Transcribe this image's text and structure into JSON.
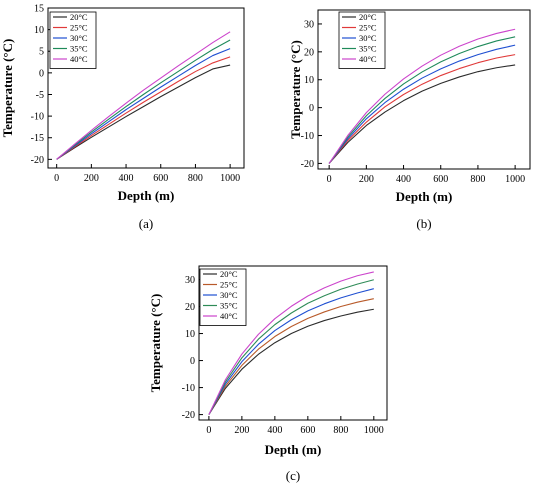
{
  "colors": {
    "20°C": "#2b2b2b",
    "25°C": "#e03a3a",
    "30°C": "#1f4fd1",
    "35°C": "#1f8a5a",
    "40°C": "#cc44cc",
    "c_25°C": "#b85a2a",
    "c_35°C": "#2e8b57"
  },
  "chart_data": [
    {
      "id": "a",
      "type": "line",
      "caption": "(a)",
      "xlabel": "Depth (m)",
      "ylabel": "Temperature (°C)",
      "xlim": [
        -50,
        1080
      ],
      "ylim": [
        -22,
        15
      ],
      "xticks": [
        0,
        200,
        400,
        600,
        800,
        1000
      ],
      "yticks": [
        -20,
        -15,
        -10,
        -5,
        0,
        5,
        10,
        15
      ],
      "legend_position": "top-left",
      "x": [
        0,
        100,
        200,
        300,
        400,
        500,
        600,
        700,
        800,
        900,
        1000
      ],
      "series": [
        {
          "name": "20°C",
          "color": "#2b2b2b",
          "values": [
            -20,
            -17.4,
            -14.9,
            -12.5,
            -10.1,
            -7.8,
            -5.5,
            -3.3,
            -1.1,
            0.9,
            1.8
          ]
        },
        {
          "name": "25°C",
          "color": "#e03a3a",
          "values": [
            -20,
            -17.2,
            -14.5,
            -11.9,
            -9.3,
            -6.8,
            -4.4,
            -2.0,
            0.3,
            2.3,
            3.7
          ]
        },
        {
          "name": "30°C",
          "color": "#1f4fd1",
          "values": [
            -20,
            -17.0,
            -14.1,
            -11.3,
            -8.5,
            -5.9,
            -3.3,
            -0.8,
            1.7,
            4.0,
            5.6
          ]
        },
        {
          "name": "35°C",
          "color": "#1f8a5a",
          "values": [
            -20,
            -16.8,
            -13.7,
            -10.7,
            -7.8,
            -5.0,
            -2.3,
            0.3,
            2.9,
            5.4,
            7.6
          ]
        },
        {
          "name": "40°C",
          "color": "#cc44cc",
          "values": [
            -20,
            -16.6,
            -13.3,
            -10.1,
            -7.0,
            -4.0,
            -1.2,
            1.6,
            4.3,
            7.0,
            9.5
          ]
        }
      ]
    },
    {
      "id": "b",
      "type": "line",
      "caption": "(b)",
      "xlabel": "Depth (m)",
      "ylabel": "Temperature (°C)",
      "xlim": [
        -60,
        1080
      ],
      "ylim": [
        -22,
        35
      ],
      "xticks": [
        0,
        200,
        400,
        600,
        800,
        1000
      ],
      "yticks": [
        -20,
        -10,
        0,
        10,
        20,
        30
      ],
      "legend_position": "top-left",
      "x": [
        0,
        100,
        200,
        300,
        400,
        500,
        600,
        700,
        800,
        900,
        1000
      ],
      "series": [
        {
          "name": "20°C",
          "color": "#2b2b2b",
          "values": [
            -20,
            -12.5,
            -6.4,
            -1.6,
            2.5,
            5.9,
            8.7,
            11.0,
            12.9,
            14.3,
            15.3
          ]
        },
        {
          "name": "25°C",
          "color": "#e03a3a",
          "values": [
            -20,
            -11.8,
            -5.2,
            0.3,
            4.7,
            8.4,
            11.5,
            14.0,
            16.1,
            17.8,
            19.0
          ]
        },
        {
          "name": "30°C",
          "color": "#1f4fd1",
          "values": [
            -20,
            -11.2,
            -4.0,
            1.8,
            6.6,
            10.6,
            13.9,
            16.7,
            19.0,
            20.9,
            22.4
          ]
        },
        {
          "name": "35°C",
          "color": "#1f8a5a",
          "values": [
            -20,
            -10.6,
            -2.9,
            3.3,
            8.5,
            12.8,
            16.4,
            19.4,
            21.9,
            23.9,
            25.4
          ]
        },
        {
          "name": "40°C",
          "color": "#cc44cc",
          "values": [
            -20,
            -10.0,
            -1.8,
            4.8,
            10.3,
            14.9,
            18.8,
            22.0,
            24.6,
            26.6,
            28.1
          ]
        }
      ]
    },
    {
      "id": "c",
      "type": "line",
      "caption": "(c)",
      "xlabel": "Depth (m)",
      "ylabel": "Temperature (°C)",
      "xlim": [
        -60,
        1080
      ],
      "ylim": [
        -22,
        35
      ],
      "xticks": [
        0,
        200,
        400,
        600,
        800,
        1000
      ],
      "yticks": [
        -20,
        -10,
        0,
        10,
        20,
        30
      ],
      "legend_position": "top-left",
      "x": [
        0,
        100,
        200,
        300,
        400,
        500,
        600,
        700,
        800,
        900,
        1000
      ],
      "series": [
        {
          "name": "20°C",
          "color": "#2b2b2b",
          "values": [
            -20,
            -10.3,
            -3.2,
            2.3,
            6.6,
            10.0,
            12.7,
            14.8,
            16.5,
            17.9,
            19.0
          ]
        },
        {
          "name": "25°C",
          "color": "#b85a2a",
          "values": [
            -20,
            -9.5,
            -1.8,
            4.2,
            8.9,
            12.6,
            15.6,
            18.0,
            20.0,
            21.6,
            22.9
          ]
        },
        {
          "name": "30°C",
          "color": "#1f4fd1",
          "values": [
            -20,
            -8.7,
            -0.4,
            6.0,
            11.1,
            15.1,
            18.4,
            21.0,
            23.2,
            25.0,
            26.6
          ]
        },
        {
          "name": "35°C",
          "color": "#2e8b57",
          "values": [
            -20,
            -7.9,
            1.0,
            7.9,
            13.3,
            17.6,
            21.2,
            24.0,
            26.4,
            28.3,
            29.9
          ]
        },
        {
          "name": "40°C",
          "color": "#cc44cc",
          "values": [
            -20,
            -7.1,
            2.4,
            9.7,
            15.5,
            20.1,
            23.9,
            26.9,
            29.4,
            31.4,
            32.8
          ]
        }
      ]
    }
  ]
}
